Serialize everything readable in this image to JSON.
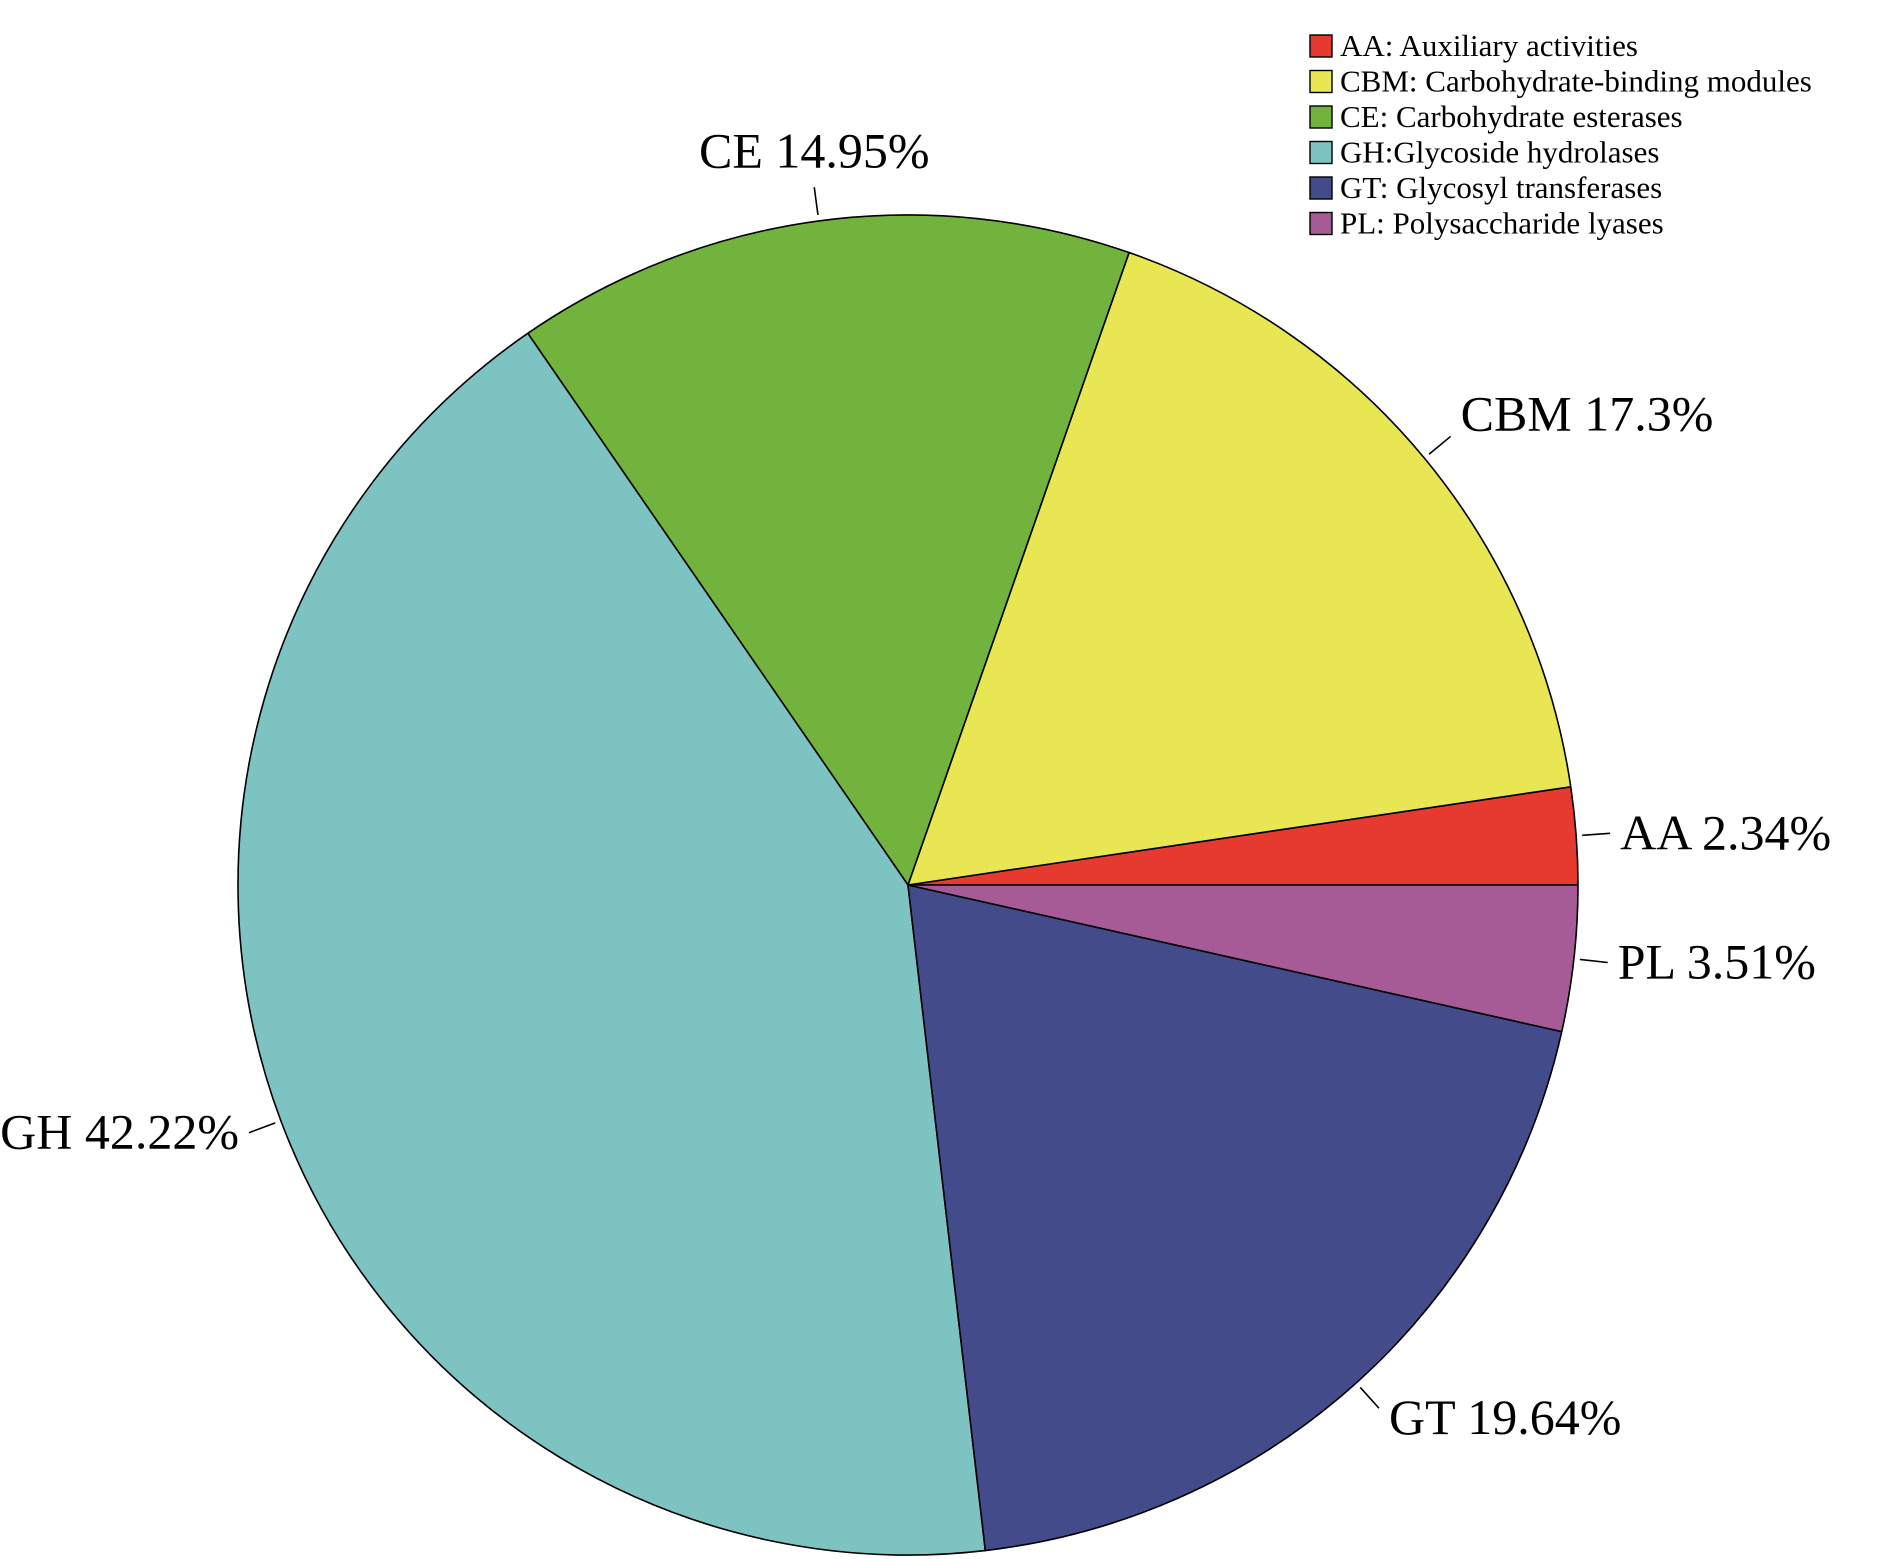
{
  "chart_data": {
    "type": "pie",
    "categories": [
      "AA",
      "CBM",
      "CE",
      "GH",
      "GT",
      "PL"
    ],
    "values": [
      2.34,
      17.3,
      14.95,
      42.22,
      19.64,
      3.51
    ],
    "slice_labels": [
      "AA 2.34%",
      "CBM 17.3%",
      "CE 14.95%",
      "GH 42.22%",
      "GT 19.64%",
      "PL 3.51%"
    ],
    "colors": [
      "#e63a30",
      "#e8e653",
      "#72b33e",
      "#7dc3c2",
      "#444b8b",
      "#a65b96"
    ],
    "start_angle_deg": 0,
    "direction": "counterclockwise",
    "legend": {
      "placement": "top-right",
      "entries": [
        "AA: Auxiliary activities",
        "CBM: Carbohydrate-binding modules",
        "CE: Carbohydrate esterases",
        "GH:Glycoside hydrolases",
        "GT: Glycosyl transferases",
        "PL: Polysaccharide lyases"
      ]
    }
  }
}
